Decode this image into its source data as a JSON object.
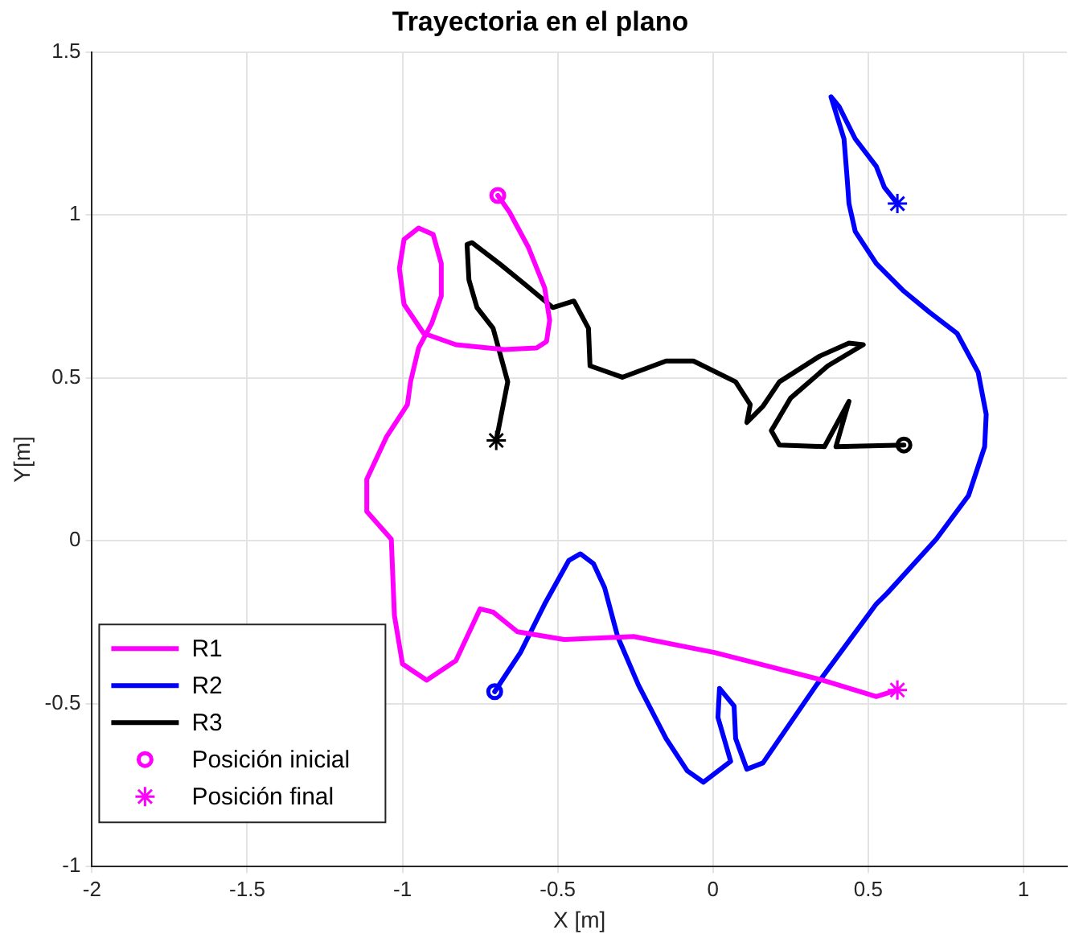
{
  "chart_data": {
    "type": "line",
    "title": "Trayectoria en el plano",
    "xlabel": "X [m]",
    "ylabel": "Y[m]",
    "xlim": [
      -2,
      1.14
    ],
    "xticks": [
      -2,
      -1.5,
      -1,
      -0.5,
      0,
      0.5,
      1
    ],
    "ylim": [
      -1,
      1.5
    ],
    "yticks": [
      -1,
      -0.5,
      0,
      0.5,
      1,
      1.5
    ],
    "grid": true,
    "legend": "bottom left",
    "marker": "none",
    "line_style": "solid",
    "series": [
      {
        "name": "R1",
        "color": "#ff00ff",
        "x": [
          -0.693,
          -0.656,
          -0.594,
          -0.542,
          -0.526,
          -0.536,
          -0.568,
          -0.672,
          -0.828,
          -0.932,
          -0.995,
          -1.01,
          -0.995,
          -0.948,
          -0.901,
          -0.875,
          -0.875,
          -0.906,
          -0.948,
          -0.974,
          -0.984,
          -1.052,
          -1.115,
          -1.115,
          -1.036,
          -1.026,
          -1.0,
          -0.922,
          -0.828,
          -0.75,
          -0.708,
          -0.63,
          -0.479,
          -0.255,
          0.005,
          0.354,
          0.526,
          0.594
        ],
        "values": [
          1.06,
          1.01,
          0.9,
          0.776,
          0.677,
          0.612,
          0.592,
          0.587,
          0.602,
          0.637,
          0.726,
          0.836,
          0.925,
          0.96,
          0.94,
          0.851,
          0.751,
          0.667,
          0.592,
          0.488,
          0.418,
          0.318,
          0.189,
          0.09,
          0.005,
          -0.229,
          -0.378,
          -0.428,
          -0.368,
          -0.209,
          -0.219,
          -0.279,
          -0.303,
          -0.294,
          -0.343,
          -0.428,
          -0.478,
          -0.458
        ]
      },
      {
        "name": "R2",
        "color": "#0000ff",
        "x": [
          -0.703,
          -0.62,
          -0.542,
          -0.464,
          -0.427,
          -0.385,
          -0.349,
          -0.307,
          -0.24,
          -0.151,
          -0.083,
          -0.031,
          0.057,
          0.016,
          0.021,
          0.068,
          0.073,
          0.109,
          0.161,
          0.333,
          0.526,
          0.563,
          0.719,
          0.823,
          0.875,
          0.88,
          0.854,
          0.786,
          0.698,
          0.615,
          0.526,
          0.458,
          0.438,
          0.432,
          0.422,
          0.38,
          0.406,
          0.458,
          0.526,
          0.552,
          0.594
        ],
        "values": [
          -0.463,
          -0.343,
          -0.194,
          -0.06,
          -0.04,
          -0.07,
          -0.144,
          -0.294,
          -0.443,
          -0.607,
          -0.706,
          -0.741,
          -0.677,
          -0.542,
          -0.453,
          -0.507,
          -0.607,
          -0.701,
          -0.682,
          -0.443,
          -0.194,
          -0.159,
          0.005,
          0.139,
          0.289,
          0.388,
          0.517,
          0.637,
          0.701,
          0.766,
          0.851,
          0.95,
          1.035,
          1.114,
          1.234,
          1.363,
          1.333,
          1.234,
          1.149,
          1.085,
          1.035
        ]
      },
      {
        "name": "R3",
        "color": "#000000",
        "x": [
          0.615,
          0.396,
          0.438,
          0.359,
          0.214,
          0.188,
          0.25,
          0.37,
          0.484,
          0.438,
          0.344,
          0.214,
          0.161,
          0.109,
          0.12,
          0.073,
          -0.063,
          -0.151,
          -0.292,
          -0.396,
          -0.401,
          -0.448,
          -0.516,
          -0.604,
          -0.688,
          -0.776,
          -0.792,
          -0.786,
          -0.76,
          -0.708,
          -0.661,
          -0.698
        ],
        "values": [
          0.294,
          0.289,
          0.428,
          0.289,
          0.294,
          0.338,
          0.438,
          0.537,
          0.602,
          0.607,
          0.567,
          0.488,
          0.413,
          0.363,
          0.418,
          0.488,
          0.552,
          0.552,
          0.502,
          0.537,
          0.652,
          0.736,
          0.716,
          0.786,
          0.851,
          0.915,
          0.91,
          0.801,
          0.716,
          0.652,
          0.488,
          0.308
        ]
      },
      {
        "name": "Posición inicial",
        "type": "scatter",
        "marker": "circle",
        "color": "#ff00ff",
        "colors": [
          "#ff00ff",
          "#0000ff",
          "#000000"
        ],
        "x": [
          -0.693,
          -0.703,
          0.615
        ],
        "values": [
          1.06,
          -0.463,
          0.294
        ]
      },
      {
        "name": "Posición final",
        "type": "scatter",
        "marker": "cross",
        "color": "#ff00ff",
        "colors": [
          "#ff00ff",
          "#0000ff",
          "#000000"
        ],
        "x": [
          0.594,
          0.594,
          -0.698
        ],
        "values": [
          -0.458,
          1.035,
          0.308
        ]
      }
    ]
  }
}
